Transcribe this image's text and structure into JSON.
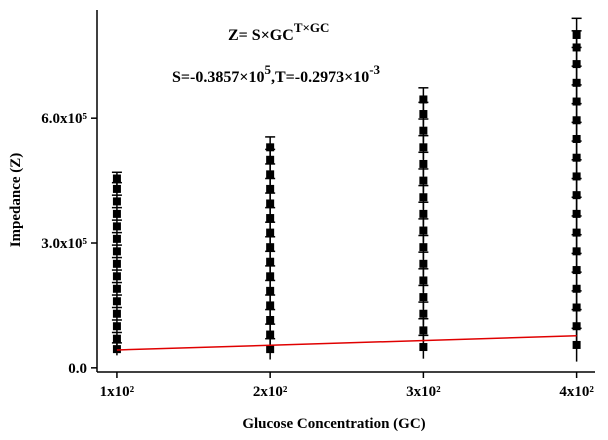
{
  "chart_data": {
    "type": "scatter",
    "x_label": "Glucose Concentration (GC)",
    "y_label": "Impedance (Z)",
    "annotations": [
      [
        "Z= S×GC",
        "T×GC"
      ],
      [
        "S=-0.3857×10",
        "5",
        ",T=-0.2973×10",
        "-3"
      ]
    ],
    "xlim": [
      87,
      412
    ],
    "ylim": [
      -10000,
      860000
    ],
    "xticks": [
      {
        "value": 100,
        "label": "1x10²"
      },
      {
        "value": 200,
        "label": "2x10²"
      },
      {
        "value": 300,
        "label": "3x10²"
      },
      {
        "value": 400,
        "label": "4x10²"
      }
    ],
    "yticks": [
      {
        "value": 0,
        "label": "0.0"
      },
      {
        "value": 300000,
        "label": "3.0x10⁵"
      },
      {
        "value": 600000,
        "label": "6.0x10⁵"
      }
    ],
    "color": "#000000",
    "x": [
      100,
      100,
      100,
      100,
      100,
      100,
      100,
      100,
      100,
      100,
      100,
      100,
      100,
      100,
      100,
      200,
      200,
      200,
      200,
      200,
      200,
      200,
      200,
      200,
      200,
      200,
      200,
      200,
      200,
      200,
      300,
      300,
      300,
      300,
      300,
      300,
      300,
      300,
      300,
      300,
      300,
      300,
      300,
      300,
      300,
      300,
      400,
      400,
      400,
      400,
      400,
      400,
      400,
      400,
      400,
      400,
      400,
      400,
      400,
      400,
      400,
      400,
      400,
      400
    ],
    "values": [
      45000,
      70000,
      100000,
      130000,
      160000,
      190000,
      220000,
      250000,
      280000,
      310000,
      340000,
      370000,
      400000,
      430000,
      455000,
      45000,
      80000,
      115000,
      150000,
      185000,
      220000,
      255000,
      290000,
      325000,
      360000,
      395000,
      430000,
      465000,
      500000,
      530000,
      50000,
      90000,
      130000,
      170000,
      210000,
      250000,
      290000,
      330000,
      370000,
      410000,
      450000,
      490000,
      530000,
      570000,
      610000,
      645000,
      55000,
      100000,
      145000,
      190000,
      235000,
      280000,
      325000,
      370000,
      415000,
      460000,
      505000,
      550000,
      595000,
      640000,
      685000,
      730000,
      770000,
      800000
    ],
    "errors": [
      15000,
      15000,
      15000,
      15000,
      15000,
      15000,
      15000,
      15000,
      15000,
      15000,
      15000,
      15000,
      15000,
      15000,
      15000,
      25000,
      25000,
      25000,
      25000,
      25000,
      25000,
      25000,
      25000,
      25000,
      25000,
      25000,
      25000,
      25000,
      25000,
      25000,
      28000,
      28000,
      28000,
      28000,
      28000,
      28000,
      28000,
      28000,
      28000,
      28000,
      28000,
      28000,
      28000,
      28000,
      28000,
      28000,
      40000,
      40000,
      40000,
      40000,
      40000,
      40000,
      40000,
      40000,
      40000,
      40000,
      40000,
      40000,
      40000,
      40000,
      40000,
      40000,
      40000,
      40000
    ],
    "fit": {
      "x": [
        100,
        400
      ],
      "values": [
        43000,
        77000
      ],
      "color": "#e00000"
    }
  }
}
